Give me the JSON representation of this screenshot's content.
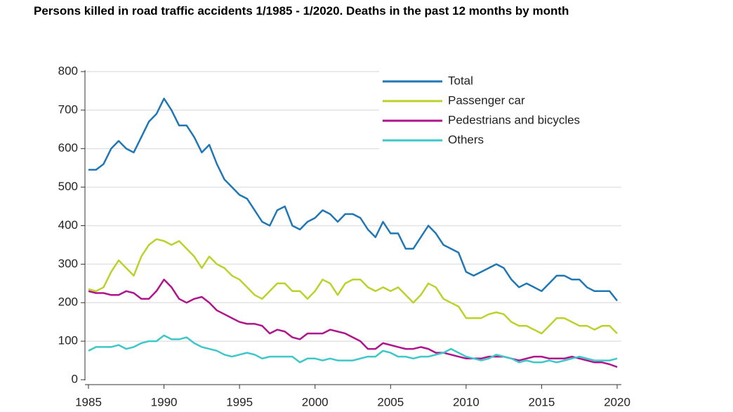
{
  "chart_data": {
    "type": "line",
    "title": "Persons killed in road traffic accidents 1/1985 - 1/2020. Deaths in the past 12 months by month",
    "x": [
      1985,
      1985.5,
      1986,
      1986.5,
      1987,
      1987.5,
      1988,
      1988.5,
      1989,
      1989.5,
      1990,
      1990.5,
      1991,
      1991.5,
      1992,
      1992.5,
      1993,
      1993.5,
      1994,
      1994.5,
      1995,
      1995.5,
      1996,
      1996.5,
      1997,
      1997.5,
      1998,
      1998.5,
      1999,
      1999.5,
      2000,
      2000.5,
      2001,
      2001.5,
      2002,
      2002.5,
      2003,
      2003.5,
      2004,
      2004.5,
      2005,
      2005.5,
      2006,
      2006.5,
      2007,
      2007.5,
      2008,
      2008.5,
      2009,
      2009.5,
      2010,
      2010.5,
      2011,
      2011.5,
      2012,
      2012.5,
      2013,
      2013.5,
      2014,
      2014.5,
      2015,
      2015.5,
      2016,
      2016.5,
      2017,
      2017.5,
      2018,
      2018.5,
      2019,
      2019.5,
      2020
    ],
    "series": [
      {
        "name": "Total",
        "color": "#1f77b4",
        "values": [
          545,
          545,
          560,
          600,
          620,
          600,
          590,
          630,
          670,
          690,
          730,
          700,
          660,
          660,
          630,
          590,
          610,
          560,
          520,
          500,
          480,
          470,
          440,
          410,
          400,
          440,
          450,
          400,
          390,
          410,
          420,
          440,
          430,
          410,
          430,
          430,
          420,
          390,
          370,
          410,
          380,
          380,
          340,
          340,
          370,
          400,
          380,
          350,
          340,
          330,
          280,
          270,
          280,
          290,
          300,
          290,
          260,
          240,
          250,
          240,
          230,
          250,
          270,
          270,
          260,
          260,
          240,
          230,
          230,
          230,
          205
        ]
      },
      {
        "name": "Passenger car",
        "color": "#bcd22a",
        "values": [
          235,
          230,
          240,
          280,
          310,
          290,
          270,
          320,
          350,
          365,
          360,
          350,
          360,
          340,
          320,
          290,
          320,
          300,
          290,
          270,
          260,
          240,
          220,
          210,
          230,
          250,
          250,
          230,
          230,
          210,
          230,
          260,
          250,
          220,
          250,
          260,
          260,
          240,
          230,
          240,
          230,
          240,
          220,
          200,
          220,
          250,
          240,
          210,
          200,
          190,
          160,
          160,
          160,
          170,
          175,
          170,
          150,
          140,
          140,
          130,
          120,
          140,
          160,
          160,
          150,
          140,
          140,
          130,
          140,
          140,
          120
        ]
      },
      {
        "name": "Pedestrians and bicycles",
        "color": "#b0148c",
        "values": [
          230,
          225,
          225,
          220,
          220,
          230,
          225,
          210,
          210,
          230,
          260,
          240,
          210,
          200,
          210,
          215,
          200,
          180,
          170,
          160,
          150,
          145,
          145,
          140,
          120,
          130,
          125,
          110,
          105,
          120,
          120,
          120,
          130,
          125,
          120,
          110,
          100,
          80,
          80,
          95,
          90,
          85,
          80,
          80,
          85,
          80,
          70,
          70,
          65,
          60,
          55,
          55,
          55,
          60,
          60,
          60,
          55,
          50,
          55,
          60,
          60,
          55,
          55,
          55,
          60,
          55,
          50,
          45,
          45,
          40,
          33
        ]
      },
      {
        "name": "Others",
        "color": "#3cc8c8",
        "values": [
          75,
          85,
          85,
          85,
          90,
          80,
          85,
          95,
          100,
          100,
          115,
          105,
          105,
          110,
          95,
          85,
          80,
          75,
          65,
          60,
          65,
          70,
          65,
          55,
          60,
          60,
          60,
          60,
          45,
          55,
          55,
          50,
          55,
          50,
          50,
          50,
          55,
          60,
          60,
          75,
          70,
          60,
          60,
          55,
          60,
          60,
          65,
          70,
          80,
          70,
          60,
          55,
          50,
          55,
          65,
          60,
          55,
          45,
          50,
          45,
          45,
          50,
          45,
          50,
          55,
          60,
          55,
          50,
          50,
          50,
          55
        ]
      }
    ],
    "xlim": [
      1985,
      2020
    ],
    "xticks": [
      1985,
      1990,
      1995,
      2000,
      2005,
      2010,
      2015,
      2020
    ],
    "ylim": [
      0,
      800
    ],
    "yticks": [
      0,
      100,
      200,
      300,
      400,
      500,
      600,
      700,
      800
    ],
    "grid": true,
    "legend": "upper right"
  }
}
